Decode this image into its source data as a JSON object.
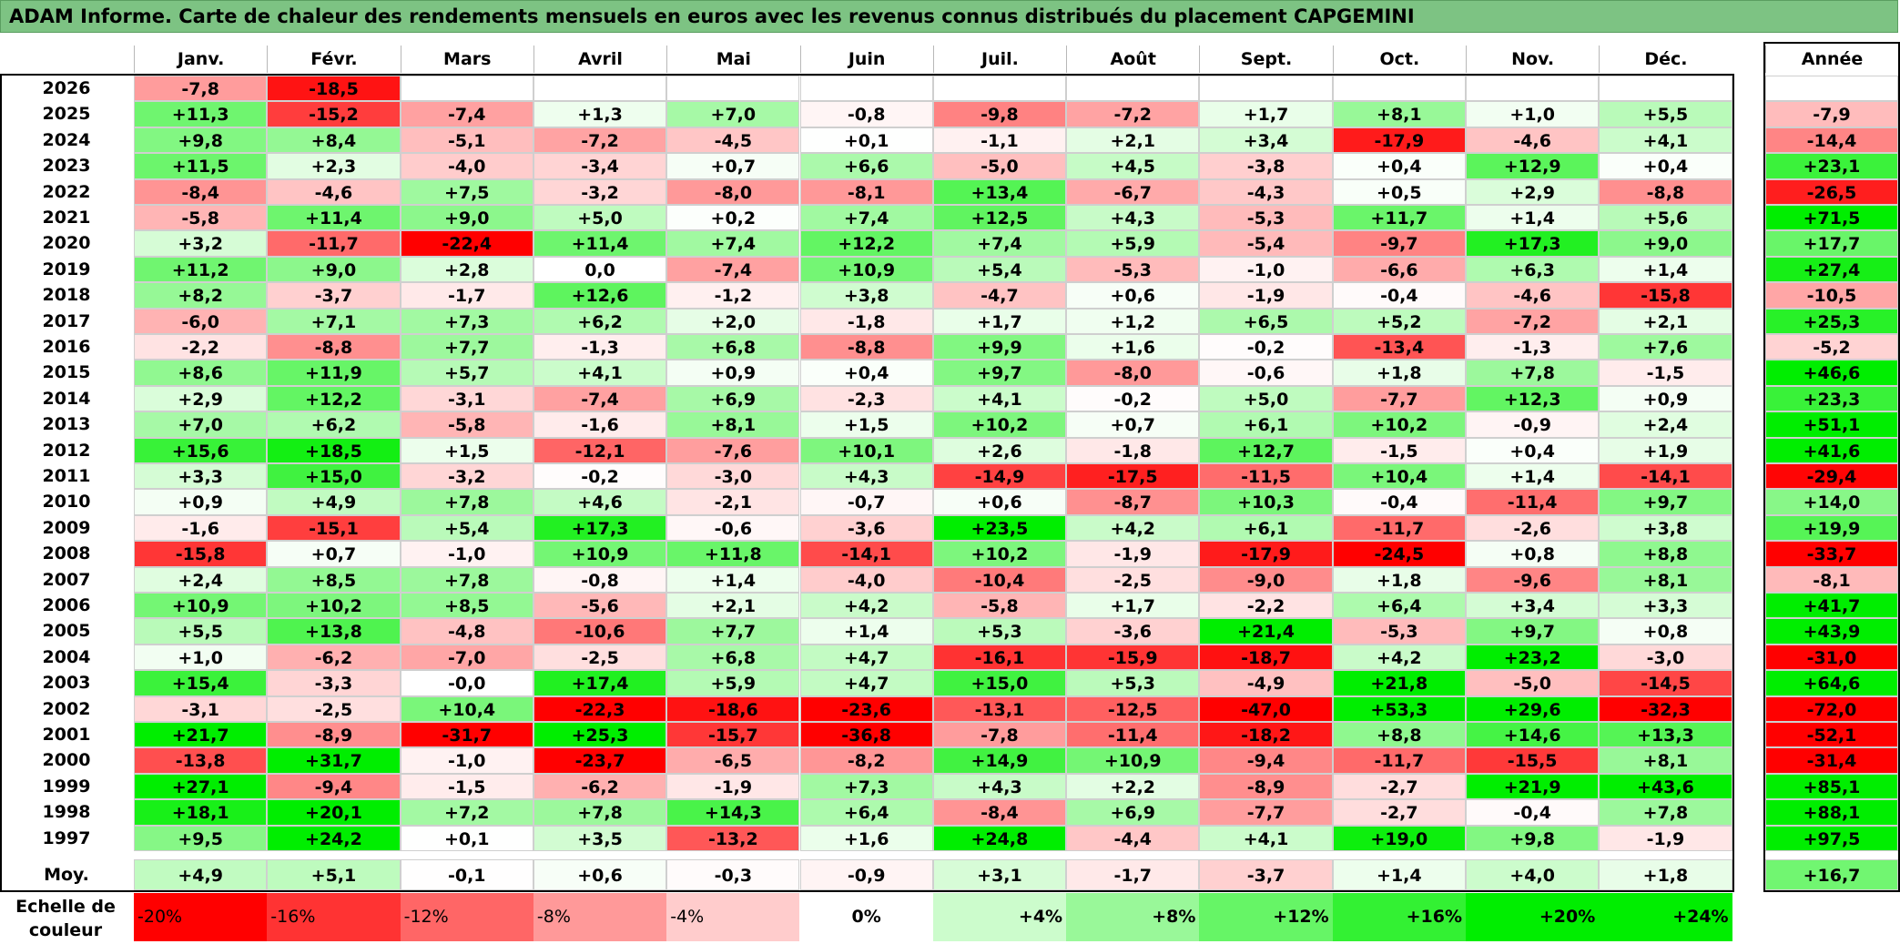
{
  "title": "ADAM Informe. Carte de chaleur des rendements mensuels en euros avec les revenus connus distribués du placement CAPGEMINI",
  "chart_data": {
    "type": "heatmap",
    "title": "ADAM Informe. Carte de chaleur des rendements mensuels en euros avec les revenus connus distribués du placement CAPGEMINI",
    "columns": [
      "Janv.",
      "Févr.",
      "Mars",
      "Avril",
      "Mai",
      "Juin",
      "Juil.",
      "Août",
      "Sept.",
      "Oct.",
      "Nov.",
      "Déc."
    ],
    "annual_header": "Année",
    "rows": [
      {
        "year": "2026",
        "values": [
          "-7,8",
          "-18,5",
          "",
          "",
          "",
          "",
          "",
          "",
          "",
          "",
          "",
          ""
        ],
        "annual": ""
      },
      {
        "year": "2025",
        "values": [
          "+11,3",
          "-15,2",
          "-7,4",
          "+1,3",
          "+7,0",
          "-0,8",
          "-9,8",
          "-7,2",
          "+1,7",
          "+8,1",
          "+1,0",
          "+5,5"
        ],
        "annual": "-7,9"
      },
      {
        "year": "2024",
        "values": [
          "+9,8",
          "+8,4",
          "-5,1",
          "-7,2",
          "-4,5",
          "+0,1",
          "-1,1",
          "+2,1",
          "+3,4",
          "-17,9",
          "-4,6",
          "+4,1"
        ],
        "annual": "-14,4"
      },
      {
        "year": "2023",
        "values": [
          "+11,5",
          "+2,3",
          "-4,0",
          "-3,4",
          "+0,7",
          "+6,6",
          "-5,0",
          "+4,5",
          "-3,8",
          "+0,4",
          "+12,9",
          "+0,4"
        ],
        "annual": "+23,1"
      },
      {
        "year": "2022",
        "values": [
          "-8,4",
          "-4,6",
          "+7,5",
          "-3,2",
          "-8,0",
          "-8,1",
          "+13,4",
          "-6,7",
          "-4,3",
          "+0,5",
          "+2,9",
          "-8,8"
        ],
        "annual": "-26,5"
      },
      {
        "year": "2021",
        "values": [
          "-5,8",
          "+11,4",
          "+9,0",
          "+5,0",
          "+0,2",
          "+7,4",
          "+12,5",
          "+4,3",
          "-5,3",
          "+11,7",
          "+1,4",
          "+5,6"
        ],
        "annual": "+71,5"
      },
      {
        "year": "2020",
        "values": [
          "+3,2",
          "-11,7",
          "-22,4",
          "+11,4",
          "+7,4",
          "+12,2",
          "+7,4",
          "+5,9",
          "-5,4",
          "-9,7",
          "+17,3",
          "+9,0"
        ],
        "annual": "+17,7"
      },
      {
        "year": "2019",
        "values": [
          "+11,2",
          "+9,0",
          "+2,8",
          "0,0",
          "-7,4",
          "+10,9",
          "+5,4",
          "-5,3",
          "-1,0",
          "-6,6",
          "+6,3",
          "+1,4"
        ],
        "annual": "+27,4"
      },
      {
        "year": "2018",
        "values": [
          "+8,2",
          "-3,7",
          "-1,7",
          "+12,6",
          "-1,2",
          "+3,8",
          "-4,7",
          "+0,6",
          "-1,9",
          "-0,4",
          "-4,6",
          "-15,8"
        ],
        "annual": "-10,5"
      },
      {
        "year": "2017",
        "values": [
          "-6,0",
          "+7,1",
          "+7,3",
          "+6,2",
          "+2,0",
          "-1,8",
          "+1,7",
          "+1,2",
          "+6,5",
          "+5,2",
          "-7,2",
          "+2,1"
        ],
        "annual": "+25,3"
      },
      {
        "year": "2016",
        "values": [
          "-2,2",
          "-8,8",
          "+7,7",
          "-1,3",
          "+6,8",
          "-8,8",
          "+9,9",
          "+1,6",
          "-0,2",
          "-13,4",
          "-1,3",
          "+7,6"
        ],
        "annual": "-5,2"
      },
      {
        "year": "2015",
        "values": [
          "+8,6",
          "+11,9",
          "+5,7",
          "+4,1",
          "+0,9",
          "+0,4",
          "+9,7",
          "-8,0",
          "-0,6",
          "+1,8",
          "+7,8",
          "-1,5"
        ],
        "annual": "+46,6"
      },
      {
        "year": "2014",
        "values": [
          "+2,9",
          "+12,2",
          "-3,1",
          "-7,4",
          "+6,9",
          "-2,3",
          "+4,1",
          "-0,2",
          "+5,0",
          "-7,7",
          "+12,3",
          "+0,9"
        ],
        "annual": "+23,3"
      },
      {
        "year": "2013",
        "values": [
          "+7,0",
          "+6,2",
          "-5,8",
          "-1,6",
          "+8,1",
          "+1,5",
          "+10,2",
          "+0,7",
          "+6,1",
          "+10,2",
          "-0,9",
          "+2,4"
        ],
        "annual": "+51,1"
      },
      {
        "year": "2012",
        "values": [
          "+15,6",
          "+18,5",
          "+1,5",
          "-12,1",
          "-7,6",
          "+10,1",
          "+2,6",
          "-1,8",
          "+12,7",
          "-1,5",
          "+0,4",
          "+1,9"
        ],
        "annual": "+41,6"
      },
      {
        "year": "2011",
        "values": [
          "+3,3",
          "+15,0",
          "-3,2",
          "-0,2",
          "-3,0",
          "+4,3",
          "-14,9",
          "-17,5",
          "-11,5",
          "+10,4",
          "+1,4",
          "-14,1"
        ],
        "annual": "-29,4"
      },
      {
        "year": "2010",
        "values": [
          "+0,9",
          "+4,9",
          "+7,8",
          "+4,6",
          "-2,1",
          "-0,7",
          "+0,6",
          "-8,7",
          "+10,3",
          "-0,4",
          "-11,4",
          "+9,7"
        ],
        "annual": "+14,0"
      },
      {
        "year": "2009",
        "values": [
          "-1,6",
          "-15,1",
          "+5,4",
          "+17,3",
          "-0,6",
          "-3,6",
          "+23,5",
          "+4,2",
          "+6,1",
          "-11,7",
          "-2,6",
          "+3,8"
        ],
        "annual": "+19,9"
      },
      {
        "year": "2008",
        "values": [
          "-15,8",
          "+0,7",
          "-1,0",
          "+10,9",
          "+11,8",
          "-14,1",
          "+10,2",
          "-1,9",
          "-17,9",
          "-24,5",
          "+0,8",
          "+8,8"
        ],
        "annual": "-33,7"
      },
      {
        "year": "2007",
        "values": [
          "+2,4",
          "+8,5",
          "+7,8",
          "-0,8",
          "+1,4",
          "-4,0",
          "-10,4",
          "-2,5",
          "-9,0",
          "+1,8",
          "-9,6",
          "+8,1"
        ],
        "annual": "-8,1"
      },
      {
        "year": "2006",
        "values": [
          "+10,9",
          "+10,2",
          "+8,5",
          "-5,6",
          "+2,1",
          "+4,2",
          "-5,8",
          "+1,7",
          "-2,2",
          "+6,4",
          "+3,4",
          "+3,3"
        ],
        "annual": "+41,7"
      },
      {
        "year": "2005",
        "values": [
          "+5,5",
          "+13,8",
          "-4,8",
          "-10,6",
          "+7,7",
          "+1,4",
          "+5,3",
          "-3,6",
          "+21,4",
          "-5,3",
          "+9,7",
          "+0,8"
        ],
        "annual": "+43,9"
      },
      {
        "year": "2004",
        "values": [
          "+1,0",
          "-6,2",
          "-7,0",
          "-2,5",
          "+6,8",
          "+4,7",
          "-16,1",
          "-15,9",
          "-18,7",
          "+4,2",
          "+23,2",
          "-3,0"
        ],
        "annual": "-31,0"
      },
      {
        "year": "2003",
        "values": [
          "+15,4",
          "-3,3",
          "-0,0",
          "+17,4",
          "+5,9",
          "+4,7",
          "+15,0",
          "+5,3",
          "-4,9",
          "+21,8",
          "-5,0",
          "-14,5"
        ],
        "annual": "+64,6"
      },
      {
        "year": "2002",
        "values": [
          "-3,1",
          "-2,5",
          "+10,4",
          "-22,3",
          "-18,6",
          "-23,6",
          "-13,1",
          "-12,5",
          "-47,0",
          "+53,3",
          "+29,6",
          "-32,3"
        ],
        "annual": "-72,0"
      },
      {
        "year": "2001",
        "values": [
          "+21,7",
          "-8,9",
          "-31,7",
          "+25,3",
          "-15,7",
          "-36,8",
          "-7,8",
          "-11,4",
          "-18,2",
          "+8,8",
          "+14,6",
          "+13,3"
        ],
        "annual": "-52,1"
      },
      {
        "year": "2000",
        "values": [
          "-13,8",
          "+31,7",
          "-1,0",
          "-23,7",
          "-6,5",
          "-8,2",
          "+14,9",
          "+10,9",
          "-9,4",
          "-11,7",
          "-15,5",
          "+8,1"
        ],
        "annual": "-31,4"
      },
      {
        "year": "1999",
        "values": [
          "+27,1",
          "-9,4",
          "-1,5",
          "-6,2",
          "-1,9",
          "+7,3",
          "+4,3",
          "+2,2",
          "-8,9",
          "-2,7",
          "+21,9",
          "+43,6"
        ],
        "annual": "+85,1"
      },
      {
        "year": "1998",
        "values": [
          "+18,1",
          "+20,1",
          "+7,2",
          "+7,8",
          "+14,3",
          "+6,4",
          "-8,4",
          "+6,9",
          "-7,7",
          "-2,7",
          "-0,4",
          "+7,8"
        ],
        "annual": "+88,1"
      },
      {
        "year": "1997",
        "values": [
          "+9,5",
          "+24,2",
          "+0,1",
          "+3,5",
          "-13,2",
          "+1,6",
          "+24,8",
          "-4,4",
          "+4,1",
          "+19,0",
          "+9,8",
          "-1,9"
        ],
        "annual": "+97,5"
      }
    ],
    "average": {
      "label": "Moy.",
      "values": [
        "+4,9",
        "+5,1",
        "-0,1",
        "+0,6",
        "-0,3",
        "-0,9",
        "+3,1",
        "-1,7",
        "-3,7",
        "+1,4",
        "+4,0",
        "+1,8"
      ],
      "annual": "+16,7"
    },
    "legend": {
      "label": "Echelle de couleur",
      "items": [
        "-20%",
        "-16%",
        "-12%",
        "-8%",
        "-4%",
        "0%",
        "+4%",
        "+8%",
        "+12%",
        "+16%",
        "+20%",
        "+24%"
      ],
      "values": [
        -20,
        -16,
        -12,
        -8,
        -4,
        0,
        4,
        8,
        12,
        16,
        20,
        24
      ]
    },
    "colors": {
      "negative": "#ff0000",
      "neutral": "#ffffff",
      "positive": "#00ee00",
      "title_bg": "#7dc383"
    }
  }
}
